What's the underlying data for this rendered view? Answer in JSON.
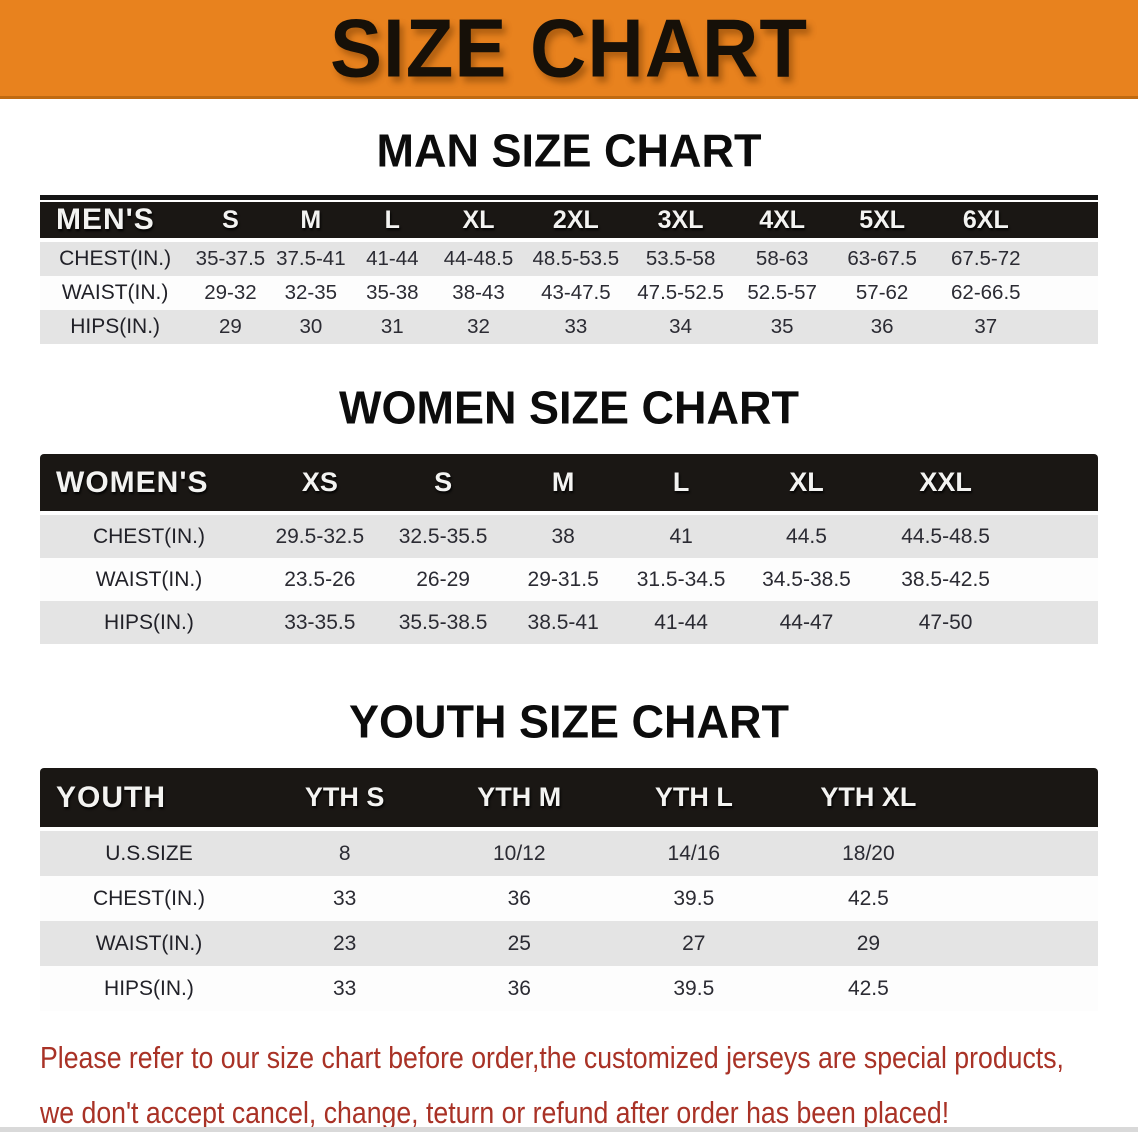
{
  "banner": {
    "title": "SIZE CHART"
  },
  "sections": {
    "men": {
      "heading": "MAN SIZE CHART",
      "table": {
        "header": [
          "MEN'S",
          "S",
          "M",
          "L",
          "XL",
          "2XL",
          "3XL",
          "4XL",
          "5XL",
          "6XL"
        ],
        "rows": [
          [
            "CHEST(IN.)",
            "35-37.5",
            "37.5-41",
            "41-44",
            "44-48.5",
            "48.5-53.5",
            "53.5-58",
            "58-63",
            "63-67.5",
            "67.5-72"
          ],
          [
            "WAIST(IN.)",
            "29-32",
            "32-35",
            "35-38",
            "38-43",
            "43-47.5",
            "47.5-52.5",
            "52.5-57",
            "57-62",
            "62-66.5"
          ],
          [
            "HIPS(IN.)",
            "29",
            "30",
            "31",
            "32",
            "33",
            "34",
            "35",
            "36",
            "37"
          ]
        ]
      }
    },
    "women": {
      "heading": "WOMEN SIZE CHART",
      "table": {
        "header": [
          "WOMEN'S",
          "XS",
          "S",
          "M",
          "L",
          "XL",
          "XXL"
        ],
        "rows": [
          [
            "CHEST(IN.)",
            "29.5-32.5",
            "32.5-35.5",
            "38",
            "41",
            "44.5",
            "44.5-48.5"
          ],
          [
            "WAIST(IN.)",
            "23.5-26",
            "26-29",
            "29-31.5",
            "31.5-34.5",
            "34.5-38.5",
            "38.5-42.5"
          ],
          [
            "HIPS(IN.)",
            "33-35.5",
            "35.5-38.5",
            "38.5-41",
            "41-44",
            "44-47",
            "47-50"
          ]
        ]
      }
    },
    "youth": {
      "heading": "YOUTH SIZE CHART",
      "table": {
        "header": [
          "YOUTH",
          "YTH S",
          "YTH M",
          "YTH L",
          "YTH XL"
        ],
        "rows": [
          [
            "U.S.SIZE",
            "8",
            "10/12",
            "14/16",
            "18/20"
          ],
          [
            "CHEST(IN.)",
            "33",
            "36",
            "39.5",
            "42.5"
          ],
          [
            "WAIST(IN.)",
            "23",
            "25",
            "27",
            "29"
          ],
          [
            "HIPS(IN.)",
            "33",
            "36",
            "39.5",
            "42.5"
          ]
        ]
      }
    }
  },
  "footer": {
    "line1": "Please refer to our size chart before order,the customized jerseys are special products,",
    "line2": "we don't accept cancel, change, teturn or refund after order has been placed!"
  },
  "colors": {
    "banner_bg": "#E8821E",
    "banner_border": "#C06A10",
    "header_bg": "#1A1714",
    "row_alt_bg": "#E4E4E4",
    "footer_text": "#A93226"
  }
}
